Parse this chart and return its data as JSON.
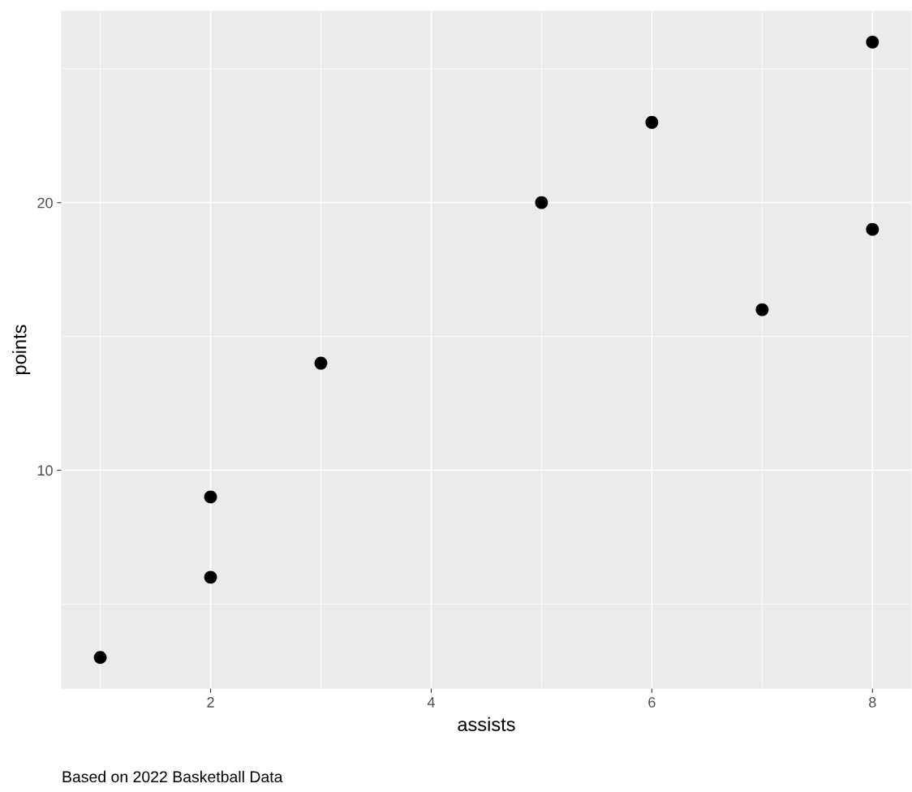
{
  "chart_data": {
    "type": "scatter",
    "xlabel": "assists",
    "ylabel": "points",
    "annotations": [
      "Based on 2022 Basketball Data"
    ],
    "x": [
      1,
      2,
      2,
      3,
      5,
      6,
      7,
      8,
      8
    ],
    "series": [
      {
        "color": "#000000",
        "values": [
          3,
          6,
          9,
          14,
          20,
          23,
          16,
          19,
          26
        ]
      }
    ],
    "xlim": [
      0.65,
      8.35
    ],
    "xticks": [
      2,
      4,
      6,
      8
    ],
    "ylim": [
      1.85,
      27.15
    ],
    "yticks": [
      10,
      20
    ],
    "grid": true,
    "marker": "circle"
  }
}
